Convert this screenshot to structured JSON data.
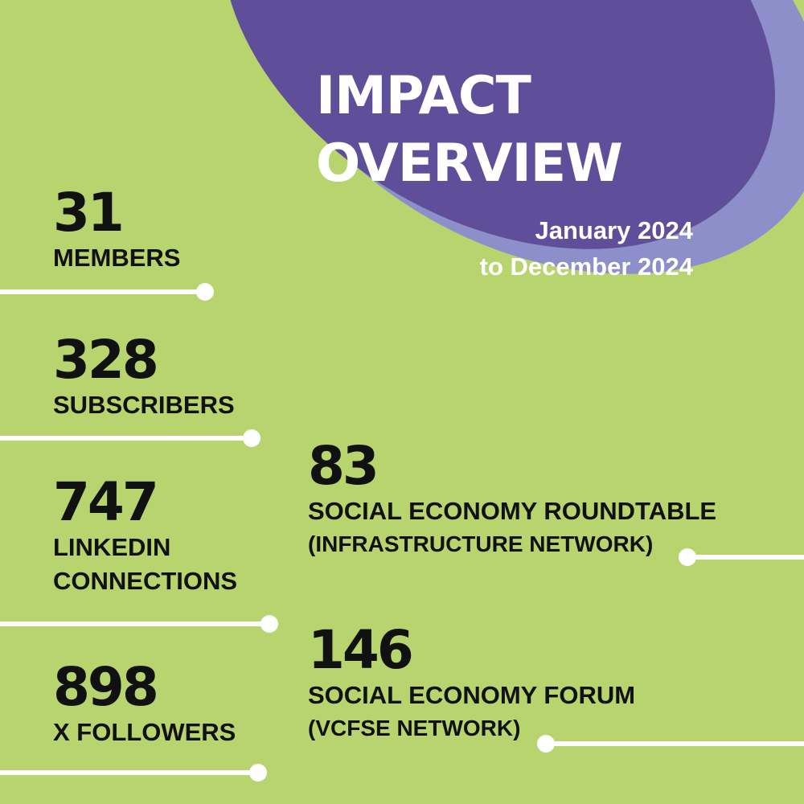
{
  "header": {
    "title_line1": "IMPACT",
    "title_line2": "OVERVIEW",
    "period_line1": "January 2024",
    "period_line2": "to December 2024"
  },
  "stats": [
    {
      "value": "31",
      "label": "MEMBERS"
    },
    {
      "value": "328",
      "label": "SUBSCRIBERS"
    },
    {
      "value": "747",
      "label_line1": "LINKEDIN",
      "label_line2": "CONNECTIONS"
    },
    {
      "value": "898",
      "label": "X FOLLOWERS"
    },
    {
      "value": "83",
      "label": "SOCIAL ECONOMY ROUNDTABLE",
      "sublabel": "(INFRASTRUCTURE NETWORK)"
    },
    {
      "value": "146",
      "label": "SOCIAL ECONOMY FORUM",
      "sublabel": "(VCFSE NETWORK)"
    }
  ],
  "colors": {
    "background": "#b7d46f",
    "blob_primary": "#5f4e99",
    "blob_secondary": "#8d8fca",
    "text_dark": "#111111",
    "text_light": "#ffffff",
    "connector": "#ffffff"
  }
}
